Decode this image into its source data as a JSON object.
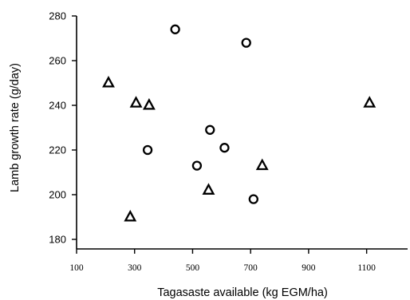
{
  "chart_data": {
    "type": "scatter",
    "title": "",
    "xlabel": "Tagasaste available (kg EGM/ha)",
    "ylabel": "Lamb growth rate (g/day)",
    "xlim": [
      100,
      1200
    ],
    "ylim": [
      180,
      280
    ],
    "x_ticks": [
      "100",
      "300",
      "500",
      "700",
      "900",
      "1100"
    ],
    "y_ticks": [
      "180",
      "200",
      "220",
      "240",
      "260",
      "280"
    ],
    "grid": false,
    "series": [
      {
        "marker": "circle",
        "points": [
          {
            "x": 440,
            "y": 274
          },
          {
            "x": 685,
            "y": 268
          },
          {
            "x": 560,
            "y": 229
          },
          {
            "x": 610,
            "y": 221
          },
          {
            "x": 345,
            "y": 220
          },
          {
            "x": 515,
            "y": 213
          },
          {
            "x": 710,
            "y": 198
          }
        ]
      },
      {
        "marker": "triangle",
        "points": [
          {
            "x": 210,
            "y": 250
          },
          {
            "x": 305,
            "y": 241
          },
          {
            "x": 350,
            "y": 240
          },
          {
            "x": 1110,
            "y": 241
          },
          {
            "x": 740,
            "y": 213
          },
          {
            "x": 555,
            "y": 202
          },
          {
            "x": 285,
            "y": 190
          }
        ]
      }
    ]
  }
}
